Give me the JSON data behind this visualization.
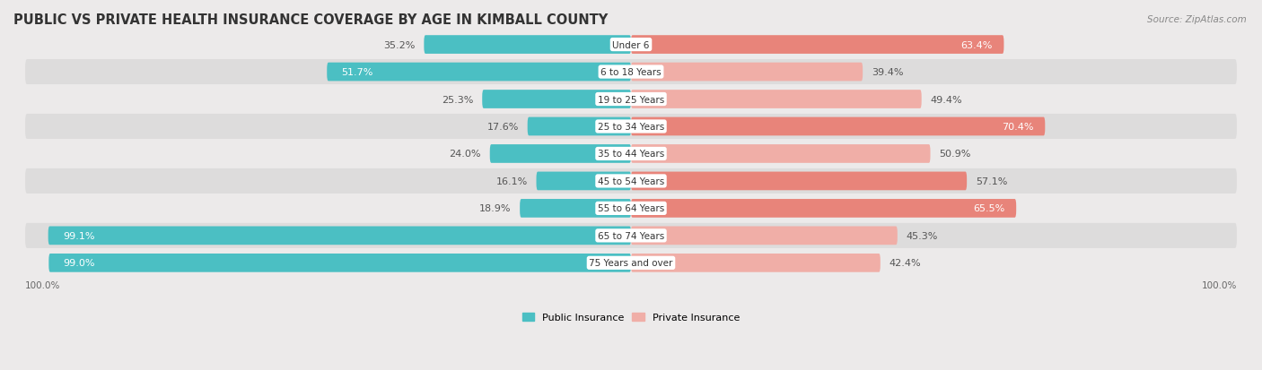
{
  "title": "PUBLIC VS PRIVATE HEALTH INSURANCE COVERAGE BY AGE IN KIMBALL COUNTY",
  "source": "Source: ZipAtlas.com",
  "categories": [
    "Under 6",
    "6 to 18 Years",
    "19 to 25 Years",
    "25 to 34 Years",
    "35 to 44 Years",
    "45 to 54 Years",
    "55 to 64 Years",
    "65 to 74 Years",
    "75 Years and over"
  ],
  "public_values": [
    35.2,
    51.7,
    25.3,
    17.6,
    24.0,
    16.1,
    18.9,
    99.1,
    99.0
  ],
  "private_values": [
    63.4,
    39.4,
    49.4,
    70.4,
    50.9,
    57.1,
    65.5,
    45.3,
    42.4
  ],
  "public_color": "#4bbfc3",
  "private_color": "#e8847a",
  "private_color_light": "#f0aea7",
  "row_bg_color_dark": "#dddcdc",
  "row_bg_color_light": "#eceaea",
  "label_color_white": "#ffffff",
  "label_color_dark": "#555555",
  "max_value": 100.0,
  "legend_public": "Public Insurance",
  "legend_private": "Private Insurance",
  "title_fontsize": 10.5,
  "source_fontsize": 7.5,
  "value_fontsize": 8,
  "category_fontsize": 7.5,
  "axis_fontsize": 7.5
}
